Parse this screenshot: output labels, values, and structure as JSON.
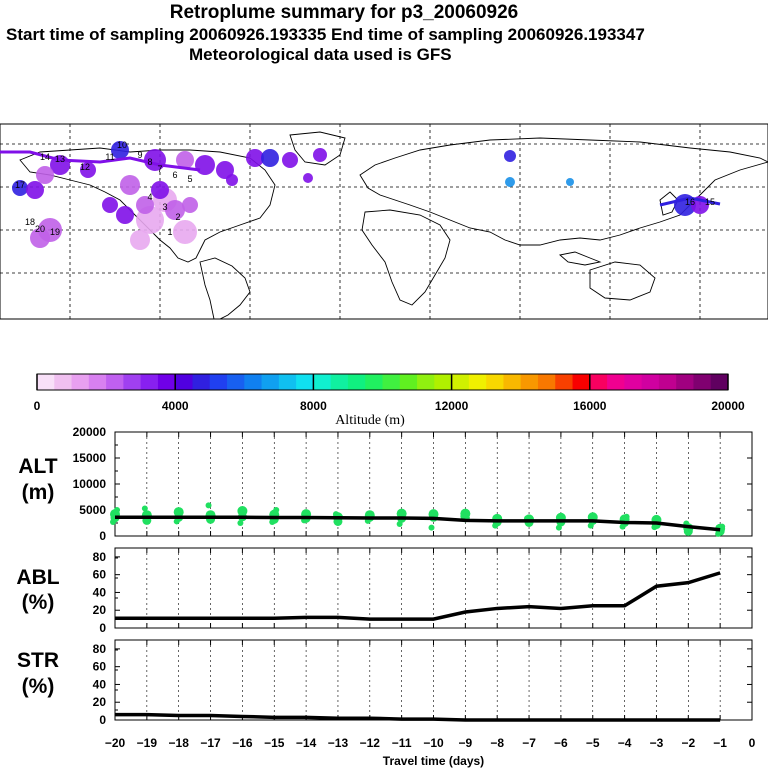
{
  "header": {
    "title": "Retroplume summary for p3_20060926",
    "sampling": "Start time of sampling 20060926.193335     End time of sampling 20060926.193347",
    "met": "Meteorological data used is GFS"
  },
  "colorbar": {
    "labels": [
      "0",
      "4000",
      "8000",
      "12000",
      "16000",
      "20000"
    ],
    "title": "Altitude (m)",
    "colors": [
      "#f8e0f8",
      "#f0c0f0",
      "#e8a0f0",
      "#d880f0",
      "#c060f0",
      "#a040f0",
      "#8820f0",
      "#7000e8",
      "#5000e0",
      "#3020e0",
      "#2040f0",
      "#1860f0",
      "#1080f0",
      "#10a0f0",
      "#10c0f0",
      "#10e0f0",
      "#10f0d0",
      "#10f0a0",
      "#10f080",
      "#20f060",
      "#40f040",
      "#60f020",
      "#90f010",
      "#b0f000",
      "#d0f000",
      "#f0f000",
      "#f8d800",
      "#f8b800",
      "#f89800",
      "#f87800",
      "#f84000",
      "#f80000",
      "#f80060",
      "#f00090",
      "#e000a0",
      "#d000a0",
      "#c00090",
      "#a00080",
      "#800070",
      "#600060"
    ]
  },
  "chart_data": [
    {
      "type": "scatter",
      "panel": "ALT",
      "ylabel": "ALT\n(m)",
      "ylim": [
        0,
        20000
      ],
      "yticks": [
        "20000",
        "15000",
        "10000",
        "5000",
        "0"
      ],
      "x": [
        -20,
        -19,
        -18,
        -17,
        -16,
        -15,
        -14,
        -13,
        -12,
        -11,
        -10,
        -9,
        -8,
        -7,
        -6,
        -5,
        -4,
        -3,
        -2,
        -1
      ],
      "mean_line": [
        3600,
        3600,
        3600,
        3600,
        3600,
        3550,
        3550,
        3500,
        3450,
        3450,
        3400,
        3000,
        2900,
        2900,
        2900,
        2900,
        2600,
        2500,
        1800,
        1200
      ],
      "points": [
        {
          "x": -20,
          "y": [
            4200,
            3500,
            2700,
            5000
          ]
        },
        {
          "x": -19,
          "y": [
            4000,
            3000,
            5300,
            3700
          ]
        },
        {
          "x": -18,
          "y": [
            4600,
            3600,
            2800
          ]
        },
        {
          "x": -17,
          "y": [
            4000,
            3200,
            5900,
            3600
          ]
        },
        {
          "x": -16,
          "y": [
            4800,
            3700,
            2500
          ]
        },
        {
          "x": -15,
          "y": [
            4100,
            3200,
            2700,
            5000
          ]
        },
        {
          "x": -14,
          "y": [
            4200,
            3400,
            3000
          ]
        },
        {
          "x": -13,
          "y": [
            3600,
            2800,
            4200
          ]
        },
        {
          "x": -12,
          "y": [
            4000,
            3600,
            2900
          ]
        },
        {
          "x": -11,
          "y": [
            4300,
            3400,
            2300
          ]
        },
        {
          "x": -10,
          "y": [
            4200,
            3600,
            1600
          ]
        },
        {
          "x": -9,
          "y": [
            4300,
            3500,
            3800
          ]
        },
        {
          "x": -8,
          "y": [
            3300,
            2700,
            2000
          ]
        },
        {
          "x": -7,
          "y": [
            3200,
            2600,
            3400
          ]
        },
        {
          "x": -6,
          "y": [
            3500,
            2700,
            1600
          ]
        },
        {
          "x": -5,
          "y": [
            3600,
            3000,
            2000
          ]
        },
        {
          "x": -4,
          "y": [
            3200,
            2600,
            1800,
            3700
          ]
        },
        {
          "x": -3,
          "y": [
            3100,
            2200,
            1700
          ]
        },
        {
          "x": -2,
          "y": [
            1500,
            900,
            2400
          ]
        },
        {
          "x": -1,
          "y": [
            1400,
            900,
            400,
            1800
          ]
        }
      ]
    },
    {
      "type": "line",
      "panel": "ABL",
      "ylabel": "ABL\n(%)",
      "ylim": [
        0,
        90
      ],
      "yticks": [
        "80",
        "60",
        "40",
        "20",
        "0"
      ],
      "x": [
        -20,
        -19,
        -18,
        -17,
        -16,
        -15,
        -14,
        -13,
        -12,
        -11,
        -10,
        -9,
        -8,
        -7,
        -6,
        -5,
        -4,
        -3,
        -2,
        -1
      ],
      "values": [
        11,
        11,
        11,
        11,
        11,
        11,
        12,
        12,
        10,
        10,
        10,
        18,
        22,
        24,
        22,
        25,
        25,
        47,
        51,
        62
      ]
    },
    {
      "type": "line",
      "panel": "STR",
      "ylabel": "STR\n(%)",
      "ylim": [
        0,
        90
      ],
      "yticks": [
        "80",
        "60",
        "40",
        "20",
        "0"
      ],
      "x": [
        -20,
        -19,
        -18,
        -17,
        -16,
        -15,
        -14,
        -13,
        -12,
        -11,
        -10,
        -9,
        -8,
        -7,
        -6,
        -5,
        -4,
        -3,
        -2,
        -1
      ],
      "values": [
        6,
        6,
        5,
        5,
        4,
        3,
        3,
        2,
        2,
        1,
        1,
        0,
        0,
        0,
        0,
        0,
        0,
        0,
        0,
        0
      ],
      "xlabel": "Travel time (days)",
      "xticks": [
        "−20",
        "−19",
        "−18",
        "−17",
        "−16",
        "−15",
        "−14",
        "−13",
        "−12",
        "−11",
        "−10",
        "−9",
        "−8",
        "−7",
        "−6",
        "−5",
        "−4",
        "−3",
        "−2",
        "−1",
        "0"
      ],
      "xlim": [
        -20,
        0
      ]
    }
  ],
  "map": {
    "labels": [
      "14",
      "13",
      "12",
      "11",
      "10",
      "9",
      "8",
      "7",
      "6",
      "5",
      "4",
      "3",
      "2",
      "1",
      "20",
      "19",
      "18",
      "17",
      "16",
      "15"
    ],
    "colors": {
      "light": "#e8a8f0",
      "mid": "#c060e8",
      "purple": "#8010e8",
      "blue": "#3020e0",
      "sky": "#1890e8",
      "line": "#000000"
    }
  }
}
